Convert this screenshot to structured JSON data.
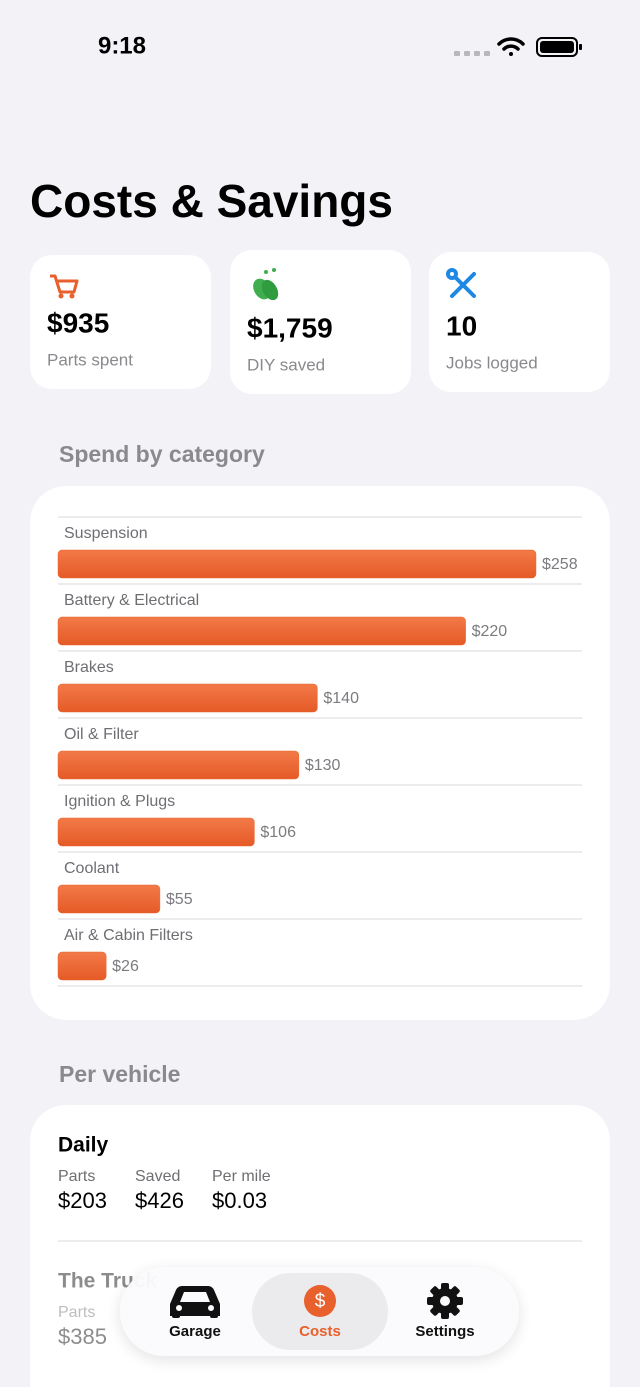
{
  "status_bar": {
    "time": "9:18"
  },
  "header": {
    "title": "Costs & Savings"
  },
  "stats": [
    {
      "value": "$935",
      "label": "Parts spent"
    },
    {
      "value": "$1,759",
      "label": "DIY saved"
    },
    {
      "value": "10",
      "label": "Jobs logged"
    }
  ],
  "chart_section": {
    "title": "Spend by category"
  },
  "chart_data": {
    "type": "bar",
    "orientation": "horizontal",
    "color": "#ec6532",
    "categories": [
      "Suspension",
      "Battery & Electrical",
      "Brakes",
      "Oil & Filter",
      "Ignition & Plugs",
      "Coolant",
      "Air & Cabin Filters"
    ],
    "values": [
      258,
      220,
      140,
      130,
      106,
      55,
      26
    ],
    "value_labels": [
      "$258",
      "$220",
      "$140",
      "$130",
      "$106",
      "$55",
      "$26"
    ]
  },
  "vehicles_section": {
    "title": "Per vehicle"
  },
  "vehicles": [
    {
      "name": "Daily",
      "metrics": [
        {
          "label": "Parts",
          "value": "$203"
        },
        {
          "label": "Saved",
          "value": "$426"
        },
        {
          "label": "Per mile",
          "value": "$0.03"
        }
      ]
    },
    {
      "name": "The Truck",
      "metrics": [
        {
          "label": "Parts",
          "value": "$385"
        }
      ]
    }
  ],
  "tab_bar": {
    "tabs": [
      "Garage",
      "Costs",
      "Settings"
    ],
    "selected": 1
  }
}
